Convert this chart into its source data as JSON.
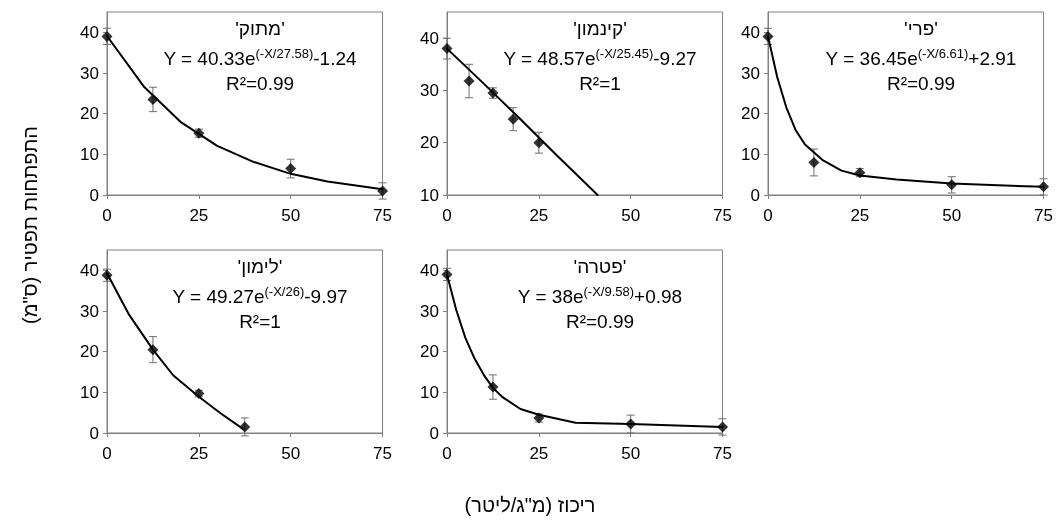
{
  "chart_data": [
    {
      "type": "scatter",
      "ylabel": "התפתחות תפטיר  (ס\"מ)",
      "xlim": [
        0,
        75
      ],
      "xticks": [
        0,
        25,
        50,
        75
      ],
      "ylim": [
        0,
        45
      ],
      "yticks": [
        0,
        10,
        20,
        30,
        40
      ],
      "annotations": [
        "'מתוק'",
        "Y = 40.33e$^{(-X/27.58)}$-1.24",
        "R²=0.99"
      ],
      "series": [
        {
          "color": "#000000",
          "marker": "diamond",
          "x": [
            0,
            12.5,
            25,
            50,
            75
          ],
          "values": [
            39,
            23.5,
            15.2,
            6.5,
            1
          ],
          "errors": [
            2,
            3,
            1,
            2.3,
            2
          ]
        },
        {
          "type": "line",
          "color": "#000000",
          "marker": "none",
          "x": [
            0,
            10,
            20,
            30,
            40,
            50,
            60,
            75
          ],
          "values": [
            39.1,
            26.7,
            18,
            12.1,
            8.1,
            5.2,
            3.3,
            1.4
          ]
        }
      ]
    },
    {
      "type": "scatter",
      "xlim": [
        0,
        75
      ],
      "xticks": [
        0,
        25,
        50,
        75
      ],
      "ylim": [
        10,
        45
      ],
      "yticks": [
        10,
        20,
        30,
        40
      ],
      "annotations": [
        "'קינמון'",
        "Y = 48.57e$^{(-X/25.45)}$-9.27",
        "R²=1"
      ],
      "series": [
        {
          "color": "#000000",
          "marker": "diamond",
          "x": [
            0,
            6,
            12.5,
            18,
            25
          ],
          "values": [
            38,
            31.8,
            29.5,
            24.5,
            20
          ],
          "errors": [
            2,
            3.2,
            1,
            2.2,
            2
          ]
        },
        {
          "type": "line",
          "color": "#000000",
          "marker": "none",
          "x": [
            0,
            10,
            20,
            30,
            41
          ],
          "values": [
            38,
            31.3,
            24.5,
            17.5,
            10
          ]
        }
      ]
    },
    {
      "type": "scatter",
      "xlim": [
        0,
        75
      ],
      "xticks": [
        0,
        25,
        50,
        75
      ],
      "ylim": [
        0,
        45
      ],
      "yticks": [
        0,
        10,
        20,
        30,
        40
      ],
      "annotations": [
        "'פרי'",
        "Y = 36.45e$^{(-X/6.61)}$+2.91",
        "R²=0.99"
      ],
      "series": [
        {
          "color": "#000000",
          "marker": "diamond",
          "x": [
            0,
            12.5,
            25,
            50,
            75
          ],
          "values": [
            39,
            8,
            5.5,
            2.5,
            2
          ],
          "errors": [
            2,
            3.3,
            1,
            2,
            2
          ]
        },
        {
          "type": "line",
          "color": "#000000",
          "marker": "none",
          "x": [
            0,
            2.5,
            5,
            7.5,
            10,
            15,
            20,
            25,
            35,
            50,
            75
          ],
          "values": [
            39,
            29,
            21.5,
            16,
            12.5,
            8.5,
            6,
            4.8,
            3.8,
            2.8,
            2
          ]
        }
      ]
    },
    {
      "type": "scatter",
      "xlim": [
        0,
        75
      ],
      "xticks": [
        0,
        25,
        50,
        75
      ],
      "ylim": [
        0,
        45
      ],
      "yticks": [
        0,
        10,
        20,
        30,
        40
      ],
      "annotations": [
        "'לימון'",
        "Y = 49.27e$^{(-X/26)}$-9.97",
        "R²=1"
      ],
      "series": [
        {
          "color": "#000000",
          "marker": "diamond",
          "x": [
            0,
            12.5,
            25,
            37.5
          ],
          "values": [
            38.8,
            20.5,
            9.7,
            1.5
          ],
          "errors": [
            1.5,
            3.2,
            0.8,
            2.2
          ]
        },
        {
          "type": "line",
          "color": "#000000",
          "marker": "none",
          "x": [
            0,
            6,
            12.5,
            18,
            25,
            31,
            37
          ],
          "values": [
            39.3,
            29.1,
            20.5,
            14.2,
            8.9,
            4.8,
            1
          ]
        }
      ]
    },
    {
      "type": "scatter",
      "xlabel": "ריכוז (מ\"ג/ליטר)",
      "xlim": [
        0,
        75
      ],
      "xticks": [
        0,
        25,
        50,
        75
      ],
      "ylim": [
        0,
        45
      ],
      "yticks": [
        0,
        10,
        20,
        30,
        40
      ],
      "annotations": [
        "'פטרה'",
        "Y = 38e$^{(-X/9.58)}$+0.98",
        "R²=0.99"
      ],
      "series": [
        {
          "color": "#000000",
          "marker": "diamond",
          "x": [
            0,
            12.5,
            25,
            50,
            75
          ],
          "values": [
            39,
            11.3,
            3.7,
            2.2,
            1.5
          ],
          "errors": [
            1.5,
            3,
            1,
            2.2,
            2
          ]
        },
        {
          "type": "line",
          "color": "#000000",
          "marker": "none",
          "x": [
            0,
            2.5,
            5,
            7.5,
            10,
            12.5,
            15,
            20,
            25,
            35,
            50,
            75
          ],
          "values": [
            39,
            30.3,
            23.4,
            18.3,
            14.3,
            11.1,
            8.9,
            5.9,
            4.5,
            2.5,
            2.2,
            1.5
          ]
        }
      ]
    }
  ]
}
